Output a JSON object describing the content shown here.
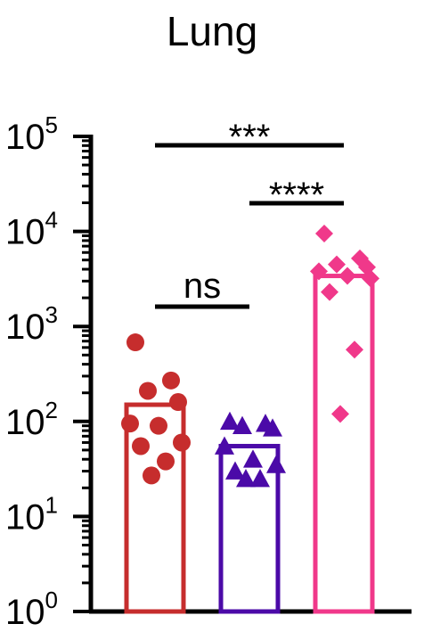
{
  "chart_data": {
    "type": "bar",
    "title": "Lung",
    "xlabel": "",
    "ylabel": "",
    "yscale": "log",
    "ylim": [
      1,
      100000
    ],
    "yticks": [
      {
        "value": 1,
        "base": "10",
        "exp": "0"
      },
      {
        "value": 10,
        "base": "10",
        "exp": "1"
      },
      {
        "value": 100,
        "base": "10",
        "exp": "2"
      },
      {
        "value": 1000,
        "base": "10",
        "exp": "3"
      },
      {
        "value": 10000,
        "base": "10",
        "exp": "4"
      },
      {
        "value": 100000,
        "base": "10",
        "exp": "5"
      }
    ],
    "groups": [
      {
        "color": "#c62d2d",
        "marker": "circle",
        "bar_value": 150,
        "points": [
          680,
          270,
          210,
          160,
          95,
          90,
          60,
          55,
          38,
          27
        ]
      },
      {
        "color": "#4b0aa8",
        "marker": "triangle",
        "bar_value": 55,
        "points": [
          100,
          95,
          90,
          85,
          55,
          40,
          35,
          30,
          25,
          25
        ]
      },
      {
        "color": "#f0388a",
        "marker": "diamond",
        "bar_value": 3400,
        "points": [
          9500,
          5200,
          4500,
          4200,
          3800,
          3400,
          3200,
          2300,
          570,
          120
        ]
      }
    ],
    "significance": [
      {
        "from": 0,
        "to": 2,
        "label": "***"
      },
      {
        "from": 1,
        "to": 2,
        "label": "****"
      },
      {
        "from": 0,
        "to": 1,
        "label": "ns"
      }
    ]
  }
}
